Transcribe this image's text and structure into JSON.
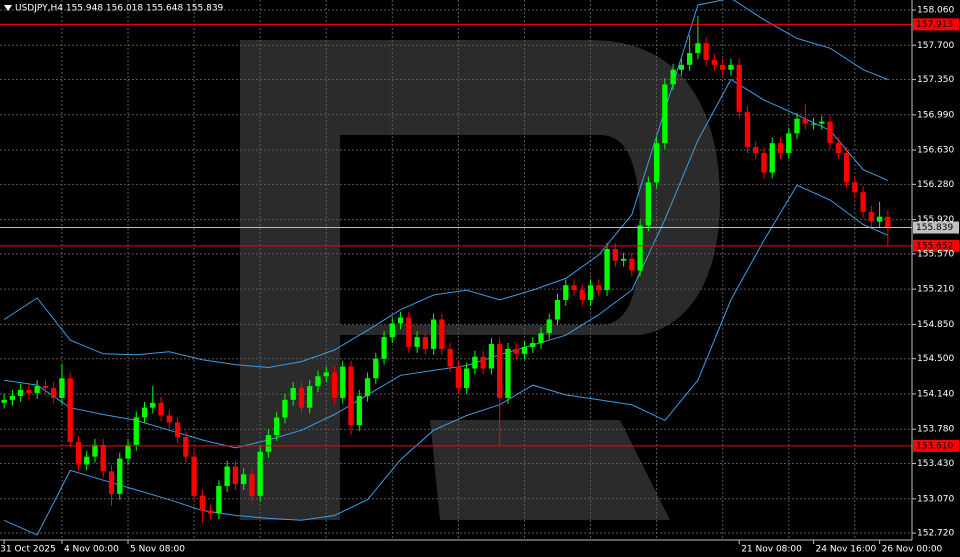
{
  "chart_data": {
    "type": "candlestick",
    "title": "USDJPY,H4  155.948 156.018 155.648 155.839",
    "up_color": "#00ff00",
    "down_color": "#ff0000",
    "categories": [
      "31 Oct 2025",
      null,
      null,
      null,
      null,
      null,
      null,
      "4 Nov 00:00",
      null,
      null,
      null,
      null,
      null,
      null,
      null,
      "5 Nov 08:00",
      null,
      null,
      null,
      null,
      null,
      null,
      null,
      null,
      null,
      null,
      null,
      null,
      null,
      null,
      null,
      null,
      null,
      null,
      null,
      null,
      null,
      null,
      null,
      null,
      null,
      null,
      null,
      null,
      null,
      null,
      null,
      null,
      null,
      null,
      null,
      null,
      null,
      null,
      null,
      null,
      null,
      null,
      null,
      null,
      null,
      null,
      null,
      null,
      null,
      null,
      null,
      null,
      null,
      null,
      null,
      null,
      null,
      null,
      null,
      null,
      null,
      null,
      null,
      null,
      null,
      null,
      null,
      null,
      null,
      null,
      null,
      null,
      null,
      "21 Nov 08:00",
      null,
      null,
      null,
      null,
      null,
      null,
      null,
      null,
      "24 Nov 16:00",
      null,
      null,
      null,
      null,
      null,
      null,
      null,
      "26 Nov 00:00",
      null
    ],
    "open": [
      154.05,
      154.08,
      154.12,
      154.18,
      154.15,
      154.22,
      154.2,
      154.1,
      154.3,
      153.65,
      153.42,
      153.5,
      153.62,
      153.35,
      153.12,
      153.48,
      153.62,
      153.9,
      154.0,
      154.05,
      153.92,
      153.85,
      153.7,
      153.5,
      153.1,
      152.95,
      152.92,
      153.2,
      153.4,
      153.22,
      153.32,
      153.1,
      153.55,
      153.72,
      153.9,
      154.08,
      154.2,
      154.0,
      154.22,
      154.32,
      154.36,
      154.1,
      154.42,
      153.82,
      154.12,
      154.3,
      154.5,
      154.72,
      154.86,
      154.92,
      154.62,
      154.72,
      154.6,
      154.9,
      154.6,
      154.42,
      154.2,
      154.4,
      154.52,
      154.4,
      154.65,
      154.1,
      154.6,
      154.55,
      154.62,
      154.66,
      154.76,
      154.9,
      155.1,
      155.25,
      155.2,
      155.1,
      155.25,
      155.2,
      155.62,
      155.5,
      155.52,
      155.4,
      155.86,
      156.3,
      156.7,
      157.3,
      157.45,
      157.5,
      157.62,
      157.72,
      157.55,
      157.5,
      157.45,
      157.5,
      157.02,
      156.66,
      156.6,
      156.4,
      156.7,
      156.6,
      156.8,
      156.95,
      156.9,
      156.9,
      156.92,
      156.7,
      156.6,
      156.3,
      156.2,
      156.0,
      155.9,
      155.948
    ],
    "high": [
      154.14,
      154.18,
      154.24,
      154.24,
      154.28,
      154.28,
      154.26,
      154.45,
      154.36,
      153.71,
      153.56,
      153.68,
      153.68,
      153.41,
      153.54,
      153.68,
      153.96,
      154.06,
      154.22,
      154.11,
      153.98,
      153.91,
      153.76,
      153.56,
      153.16,
      153.01,
      153.26,
      153.46,
      153.46,
      153.38,
      153.38,
      153.61,
      153.78,
      153.96,
      154.14,
      154.26,
      154.26,
      154.28,
      154.38,
      154.42,
      154.42,
      154.48,
      154.48,
      154.18,
      154.36,
      154.56,
      154.78,
      154.92,
      154.98,
      154.98,
      154.78,
      154.78,
      154.96,
      154.96,
      154.66,
      154.48,
      154.46,
      154.58,
      154.58,
      154.71,
      154.71,
      154.66,
      154.66,
      154.68,
      154.72,
      154.82,
      154.96,
      155.16,
      155.31,
      155.31,
      155.26,
      155.31,
      155.31,
      155.68,
      155.68,
      155.58,
      155.58,
      155.92,
      156.36,
      156.76,
      157.36,
      157.51,
      157.56,
      157.8,
      158.0,
      157.78,
      157.61,
      157.56,
      157.56,
      157.56,
      157.08,
      156.72,
      156.66,
      156.76,
      156.76,
      156.86,
      157.01,
      157.1,
      156.96,
      156.98,
      156.98,
      156.76,
      156.66,
      156.36,
      156.26,
      156.06,
      156.1,
      156.018
    ],
    "low": [
      153.99,
      154.02,
      154.06,
      154.09,
      154.09,
      154.14,
      154.04,
      154.04,
      153.59,
      153.36,
      153.36,
      153.44,
      153.29,
      153.0,
      153.06,
      153.42,
      153.56,
      153.84,
      153.94,
      153.86,
      153.79,
      153.64,
      153.44,
      153.04,
      152.82,
      152.86,
      152.86,
      153.14,
      153.16,
      153.16,
      153.04,
      153.04,
      153.49,
      153.66,
      153.84,
      154.02,
      153.94,
      153.94,
      154.16,
      154.26,
      154.04,
      154.04,
      153.72,
      153.76,
      154.06,
      154.24,
      154.44,
      154.66,
      154.8,
      154.56,
      154.56,
      154.54,
      154.54,
      154.54,
      154.36,
      154.14,
      154.14,
      154.34,
      154.34,
      154.34,
      153.62,
      154.04,
      154.49,
      154.49,
      154.56,
      154.6,
      154.7,
      154.84,
      155.04,
      155.14,
      155.04,
      155.04,
      155.14,
      155.14,
      155.44,
      155.44,
      155.34,
      155.34,
      155.8,
      156.24,
      156.64,
      157.24,
      157.39,
      157.44,
      157.56,
      157.49,
      157.44,
      157.39,
      157.39,
      156.96,
      156.6,
      156.54,
      156.34,
      156.34,
      156.54,
      156.54,
      156.74,
      156.84,
      156.84,
      156.84,
      156.64,
      156.54,
      156.24,
      156.14,
      155.94,
      155.84,
      155.84,
      155.648
    ],
    "close": [
      154.08,
      154.12,
      154.18,
      154.15,
      154.22,
      154.2,
      154.1,
      154.3,
      153.65,
      153.42,
      153.5,
      153.62,
      153.35,
      153.12,
      153.48,
      153.62,
      153.9,
      154.0,
      154.05,
      153.92,
      153.85,
      153.7,
      153.5,
      153.1,
      152.95,
      152.92,
      153.2,
      153.4,
      153.22,
      153.32,
      153.1,
      153.55,
      153.72,
      153.9,
      154.08,
      154.2,
      154.0,
      154.22,
      154.32,
      154.36,
      154.1,
      154.42,
      153.82,
      154.12,
      154.3,
      154.5,
      154.72,
      154.86,
      154.92,
      154.62,
      154.72,
      154.6,
      154.9,
      154.6,
      154.42,
      154.2,
      154.4,
      154.52,
      154.4,
      154.65,
      154.1,
      154.6,
      154.55,
      154.62,
      154.66,
      154.76,
      154.9,
      155.1,
      155.25,
      155.2,
      155.1,
      155.25,
      155.2,
      155.62,
      155.5,
      155.52,
      155.4,
      155.86,
      156.3,
      156.7,
      157.3,
      157.45,
      157.5,
      157.62,
      157.72,
      157.55,
      157.5,
      157.45,
      157.5,
      157.02,
      156.66,
      156.6,
      156.4,
      156.7,
      156.6,
      156.8,
      156.95,
      156.9,
      156.9,
      156.92,
      156.7,
      156.6,
      156.3,
      156.2,
      156.0,
      155.9,
      155.95,
      155.839
    ],
    "bands": [
      {
        "color": "#3a9ee4",
        "x": [
          0,
          4,
          8,
          12,
          16,
          20,
          24,
          28,
          32,
          36,
          40,
          44,
          48,
          52,
          56,
          60,
          64,
          68,
          72,
          76,
          80,
          84,
          88,
          92,
          96,
          100,
          104,
          107
        ],
        "values": [
          154.9,
          155.12,
          154.69,
          154.55,
          154.54,
          154.57,
          154.49,
          154.44,
          154.41,
          154.47,
          154.59,
          154.79,
          155.0,
          155.15,
          155.2,
          155.1,
          155.2,
          155.32,
          155.56,
          155.97,
          157.04,
          158.11,
          158.18,
          157.96,
          157.77,
          157.67,
          157.45,
          157.35
        ]
      },
      {
        "color": "#3a9ee4",
        "x": [
          0,
          4,
          8,
          12,
          16,
          20,
          24,
          28,
          32,
          36,
          40,
          44,
          48,
          52,
          56,
          60,
          64,
          68,
          72,
          76,
          80,
          84,
          88,
          92,
          96,
          100,
          104,
          107
        ],
        "values": [
          154.28,
          154.23,
          154.0,
          153.93,
          153.87,
          153.77,
          153.67,
          153.59,
          153.67,
          153.77,
          153.93,
          154.13,
          154.33,
          154.38,
          154.43,
          154.54,
          154.64,
          154.74,
          154.95,
          155.2,
          155.92,
          156.73,
          157.35,
          157.14,
          156.99,
          156.83,
          156.43,
          156.32
        ]
      },
      {
        "color": "#3a9ee4",
        "x": [
          0,
          4,
          8,
          12,
          16,
          20,
          24,
          28,
          32,
          36,
          40,
          44,
          48,
          52,
          56,
          60,
          64,
          68,
          72,
          76,
          80,
          84,
          88,
          92,
          96,
          100,
          104,
          107
        ],
        "values": [
          152.85,
          152.7,
          153.36,
          153.26,
          153.16,
          153.06,
          152.95,
          152.9,
          152.87,
          152.85,
          152.9,
          153.06,
          153.47,
          153.77,
          153.92,
          154.03,
          154.23,
          154.13,
          154.08,
          154.03,
          153.87,
          154.28,
          155.1,
          155.71,
          156.27,
          156.12,
          155.87,
          155.76
        ]
      }
    ],
    "levels": [
      {
        "value": 157.913,
        "color": "#ff0000"
      },
      {
        "value": 155.839,
        "color": "#c0c0c0"
      },
      {
        "value": 155.652,
        "color": "#ff0000"
      },
      {
        "value": 153.61,
        "label": "153.610",
        "color": "#ff0000"
      }
    ],
    "ylim": [
      152.649,
      158.162
    ],
    "yticks": [
      {
        "value": 158.06,
        "label": "158.060"
      },
      {
        "value": 157.7,
        "label": "157.700"
      },
      {
        "value": 157.35,
        "label": "157.350"
      },
      {
        "value": 156.99,
        "label": "156.990"
      },
      {
        "value": 156.63,
        "label": "156.630"
      },
      {
        "value": 156.28,
        "label": "156.280"
      },
      {
        "value": 155.92,
        "label": "155.920"
      },
      {
        "value": 155.57,
        "label": "155.570"
      },
      {
        "value": 155.21,
        "label": "155.210"
      },
      {
        "value": 154.85,
        "label": "154.850"
      },
      {
        "value": 154.5,
        "label": "154.500"
      },
      {
        "value": 154.14,
        "label": "154.140"
      },
      {
        "value": 153.78,
        "label": "153.780"
      },
      {
        "value": 153.43,
        "label": "153.430"
      },
      {
        "value": 153.07,
        "label": "153.070"
      },
      {
        "value": 152.72,
        "label": "152.720"
      }
    ],
    "grid": true
  }
}
